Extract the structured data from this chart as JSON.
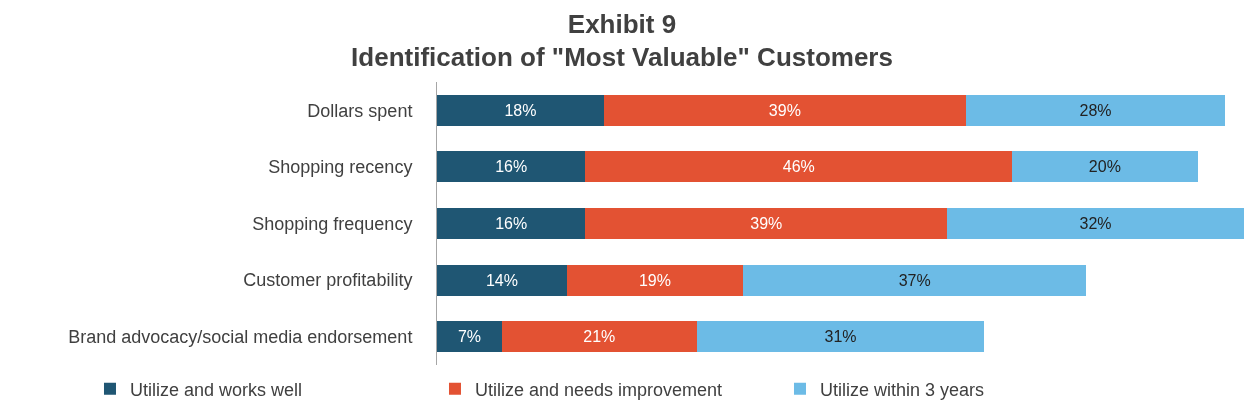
{
  "chart_data": {
    "type": "bar",
    "title": "Exhibit 9\nIdentification of \"Most Valuable\" Customers",
    "orientation": "horizontal",
    "stacked": true,
    "categories": [
      "Dollars spent",
      "Shopping recency",
      "Shopping frequency",
      "Customer profitability",
      "Brand advocacy/social media endorsement"
    ],
    "xlim": [
      0,
      87
    ],
    "tick_labels": "y",
    "legend": "bottom",
    "series": [
      {
        "name": "Utilize and works well",
        "color": "#1f5673",
        "values": [
          18,
          16,
          16,
          14,
          7
        ],
        "value_labels": [
          "18%",
          "16%",
          "16%",
          "14%",
          "7%"
        ]
      },
      {
        "name": "Utilize and needs improvement",
        "color": "#e35233",
        "values": [
          39,
          46,
          39,
          19,
          21
        ],
        "value_labels": [
          "39%",
          "46%",
          "39%",
          "19%",
          "21%"
        ]
      },
      {
        "name": "Utilize within 3 years",
        "color": "#6cbbe6",
        "values": [
          28,
          20,
          32,
          37,
          31
        ],
        "value_labels": [
          "28%",
          "20%",
          "32%",
          "37%",
          "31%"
        ]
      }
    ]
  }
}
